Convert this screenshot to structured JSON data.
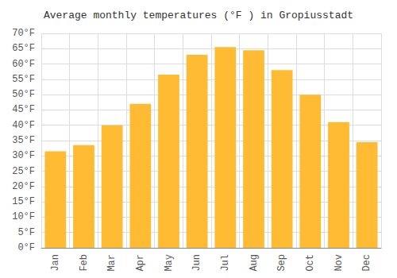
{
  "chart_data": {
    "type": "bar",
    "title": "Average monthly temperatures (°F ) in Gropiusstadt",
    "categories": [
      "Jan",
      "Feb",
      "Mar",
      "Apr",
      "May",
      "Jun",
      "Jul",
      "Aug",
      "Sep",
      "Oct",
      "Nov",
      "Dec"
    ],
    "values": [
      31.5,
      33.5,
      40.0,
      47.0,
      56.5,
      63.0,
      65.5,
      64.5,
      58.0,
      50.0,
      41.0,
      34.5
    ],
    "color": "#FFBB33",
    "ylim": [
      0,
      70
    ],
    "yticks": [
      {
        "value": 0,
        "label": "0°F"
      },
      {
        "value": 5,
        "label": "5°F"
      },
      {
        "value": 10,
        "label": "10°F"
      },
      {
        "value": 15,
        "label": "15°F"
      },
      {
        "value": 20,
        "label": "20°F"
      },
      {
        "value": 25,
        "label": "25°F"
      },
      {
        "value": 30,
        "label": "30°F"
      },
      {
        "value": 35,
        "label": "35°F"
      },
      {
        "value": 40,
        "label": "40°F"
      },
      {
        "value": 45,
        "label": "45°F"
      },
      {
        "value": 50,
        "label": "50°F"
      },
      {
        "value": 55,
        "label": "55°F"
      },
      {
        "value": 60,
        "label": "60°F"
      },
      {
        "value": 65,
        "label": "65°F"
      },
      {
        "value": 70,
        "label": "70°F"
      }
    ],
    "grid": true
  }
}
